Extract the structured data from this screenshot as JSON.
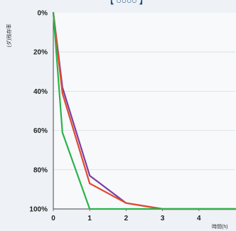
{
  "chart_data": {
    "type": "line",
    "title": "【 ○○○○ 】",
    "xlabel": "時間(h)",
    "ylabel": "(ダ)残存率",
    "x_ticks": [
      "0",
      "1",
      "2",
      "3",
      "4"
    ],
    "y_ticks": [
      "0%",
      "20%",
      "40%",
      "60%",
      "80%",
      "100%"
    ],
    "xlim": [
      0,
      5
    ],
    "ylim": [
      0,
      100
    ],
    "y_inverted": true,
    "grid": true,
    "series": [
      {
        "color": "#7a3fa0",
        "x": [
          0,
          0.25,
          1,
          2,
          3,
          4,
          5
        ],
        "y": [
          0,
          38,
          83,
          97,
          100,
          100,
          100
        ]
      },
      {
        "color": "#e24a2e",
        "x": [
          0,
          0.25,
          1,
          2,
          3,
          4,
          5
        ],
        "y": [
          0,
          41,
          87,
          97,
          100,
          100,
          100
        ]
      },
      {
        "color": "#2bb34a",
        "x": [
          0,
          0.25,
          1,
          2,
          3,
          4,
          5
        ],
        "y": [
          0,
          61,
          100,
          100,
          100,
          100,
          100
        ]
      }
    ]
  }
}
